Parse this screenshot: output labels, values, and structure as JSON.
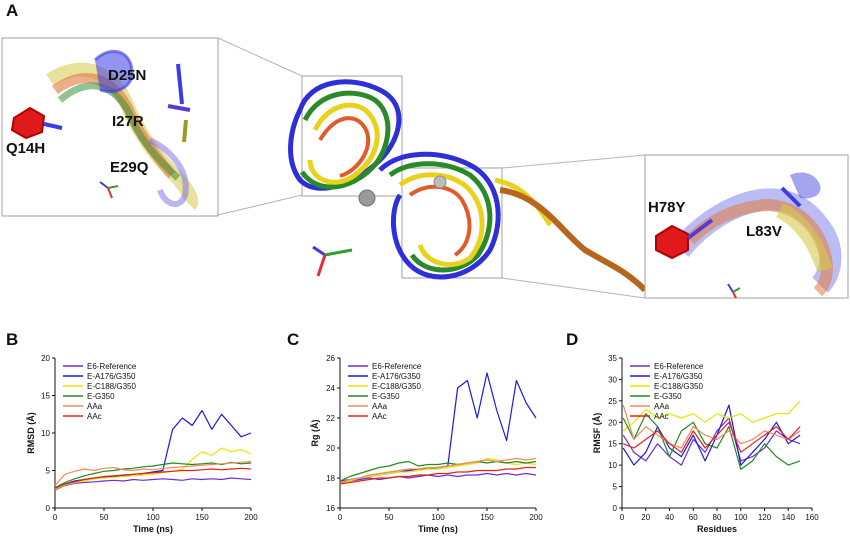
{
  "panel_a": {
    "letter": "A",
    "mutation_labels": [
      "D25N",
      "I27R",
      "Q14H",
      "E29Q",
      "H78Y",
      "L83V"
    ]
  },
  "chart_data": [
    {
      "panel": "B",
      "type": "line",
      "title": "",
      "xlabel": "Time (ns)",
      "ylabel": "RMSD (Å)",
      "xlim": [
        0,
        200
      ],
      "ylim": [
        0,
        20
      ],
      "xticks": [
        "0",
        "50",
        "100",
        "150",
        "200"
      ],
      "yticks": [
        "0",
        "5",
        "10",
        "15",
        "20"
      ],
      "legend_position": "top-left",
      "x": [
        0,
        10,
        20,
        30,
        40,
        50,
        60,
        70,
        80,
        90,
        100,
        110,
        120,
        130,
        140,
        150,
        160,
        170,
        180,
        190,
        200
      ],
      "series": [
        {
          "name": "E6-Reference",
          "color": "#6b2fd6",
          "values": [
            2.4,
            3.0,
            3.3,
            3.4,
            3.5,
            3.6,
            3.7,
            3.6,
            3.8,
            3.7,
            3.8,
            3.9,
            3.8,
            3.7,
            3.9,
            3.8,
            3.9,
            3.8,
            4.0,
            3.9,
            3.8
          ]
        },
        {
          "name": "E-A176/G350",
          "color": "#1a1ae6",
          "values": [
            2.6,
            3.2,
            3.6,
            3.8,
            4.0,
            4.1,
            4.2,
            4.3,
            4.5,
            4.6,
            4.8,
            5.0,
            10.5,
            12.0,
            11.0,
            13.0,
            10.5,
            12.5,
            11.0,
            9.5,
            10.0
          ]
        },
        {
          "name": "E-C188/G350",
          "color": "#e6e600",
          "values": [
            2.5,
            3.1,
            3.4,
            3.6,
            3.9,
            4.0,
            4.1,
            4.2,
            4.3,
            4.4,
            4.5,
            4.7,
            4.9,
            5.2,
            6.5,
            7.5,
            7.0,
            8.0,
            7.5,
            7.8,
            7.2
          ]
        },
        {
          "name": "E-G350",
          "color": "#1e8c1e",
          "values": [
            2.7,
            3.4,
            3.9,
            4.3,
            4.6,
            4.9,
            5.0,
            5.2,
            5.3,
            5.5,
            5.6,
            5.8,
            6.0,
            5.9,
            5.8,
            5.9,
            6.0,
            5.8,
            6.1,
            5.9,
            6.0
          ]
        },
        {
          "name": "AAa",
          "color": "#f08a5a",
          "values": [
            3.0,
            4.5,
            4.9,
            5.2,
            5.0,
            5.3,
            5.4,
            5.1,
            5.0,
            5.2,
            5.1,
            5.3,
            5.4,
            5.5,
            5.6,
            5.7,
            5.8,
            5.9,
            6.0,
            6.1,
            6.2
          ]
        },
        {
          "name": "AAc",
          "color": "#e61e1e",
          "values": [
            2.6,
            3.2,
            3.5,
            3.8,
            4.0,
            4.2,
            4.3,
            4.4,
            4.5,
            4.6,
            4.7,
            4.8,
            4.9,
            5.0,
            5.0,
            5.1,
            5.2,
            5.1,
            5.2,
            5.3,
            5.2
          ]
        }
      ]
    },
    {
      "panel": "C",
      "type": "line",
      "title": "",
      "xlabel": "Time (ns)",
      "ylabel": "Rg (Å)",
      "xlim": [
        0,
        200
      ],
      "ylim": [
        16,
        26
      ],
      "xticks": [
        "0",
        "50",
        "100",
        "150",
        "200"
      ],
      "yticks": [
        "16",
        "18",
        "20",
        "22",
        "24",
        "26"
      ],
      "legend_position": "top-left",
      "x": [
        0,
        10,
        20,
        30,
        40,
        50,
        60,
        70,
        80,
        90,
        100,
        110,
        120,
        130,
        140,
        150,
        160,
        170,
        180,
        190,
        200
      ],
      "series": [
        {
          "name": "E6-Reference",
          "color": "#6b2fd6",
          "values": [
            17.7,
            17.8,
            17.9,
            18.0,
            17.9,
            18.0,
            18.1,
            18.0,
            18.1,
            18.2,
            18.1,
            18.2,
            18.1,
            18.2,
            18.2,
            18.3,
            18.2,
            18.3,
            18.2,
            18.3,
            18.2
          ]
        },
        {
          "name": "E-A176/G350",
          "color": "#1a1ae6",
          "values": [
            17.8,
            17.9,
            18.0,
            18.1,
            18.2,
            18.3,
            18.4,
            18.5,
            18.6,
            18.6,
            18.7,
            18.8,
            24.0,
            24.5,
            22.0,
            25.0,
            22.5,
            20.5,
            24.5,
            23.0,
            22.0
          ]
        },
        {
          "name": "E-C188/G350",
          "color": "#e6e600",
          "values": [
            17.6,
            17.8,
            18.0,
            18.1,
            18.2,
            18.3,
            18.4,
            18.4,
            18.5,
            18.6,
            18.6,
            18.7,
            18.8,
            18.9,
            19.0,
            19.3,
            19.2,
            19.0,
            18.9,
            19.0,
            18.9
          ]
        },
        {
          "name": "E-G350",
          "color": "#1e8c1e",
          "values": [
            17.8,
            18.1,
            18.3,
            18.5,
            18.7,
            18.8,
            19.0,
            19.1,
            18.8,
            18.9,
            18.9,
            19.0,
            18.9,
            19.0,
            19.1,
            19.0,
            19.1,
            19.0,
            19.1,
            19.0,
            19.1
          ]
        },
        {
          "name": "AAa",
          "color": "#f08a5a",
          "values": [
            17.7,
            17.9,
            18.0,
            18.2,
            18.3,
            18.4,
            18.5,
            18.6,
            18.6,
            18.7,
            18.7,
            18.8,
            18.9,
            19.0,
            19.1,
            19.2,
            19.1,
            19.2,
            19.3,
            19.2,
            19.3
          ]
        },
        {
          "name": "AAc",
          "color": "#e61e1e",
          "values": [
            17.6,
            17.7,
            17.8,
            17.9,
            18.0,
            18.0,
            18.1,
            18.1,
            18.2,
            18.2,
            18.3,
            18.3,
            18.4,
            18.4,
            18.5,
            18.5,
            18.5,
            18.6,
            18.6,
            18.7,
            18.7
          ]
        }
      ]
    },
    {
      "panel": "D",
      "type": "line",
      "title": "",
      "xlabel": "Residues",
      "ylabel": "RMSF (Å)",
      "xlim": [
        0,
        160
      ],
      "ylim": [
        0,
        35
      ],
      "xticks": [
        "0",
        "20",
        "40",
        "60",
        "80",
        "100",
        "120",
        "140",
        "160"
      ],
      "yticks": [
        "0",
        "5",
        "10",
        "15",
        "20",
        "25",
        "30",
        "35"
      ],
      "legend_position": "top-left",
      "x": [
        1,
        10,
        20,
        30,
        40,
        50,
        60,
        70,
        80,
        90,
        100,
        110,
        120,
        130,
        140,
        150
      ],
      "series": [
        {
          "name": "E6-Reference",
          "color": "#6b2fd6",
          "values": [
            17,
            13,
            11,
            15,
            12,
            10,
            16,
            13,
            18,
            21,
            11,
            12,
            14,
            18,
            16,
            15
          ]
        },
        {
          "name": "E-A176/G350",
          "color": "#1a1ae6",
          "values": [
            14,
            10,
            13,
            19,
            14,
            12,
            17,
            11,
            17,
            24,
            10,
            13,
            16,
            20,
            15,
            17
          ]
        },
        {
          "name": "E-C188/G350",
          "color": "#e6e600",
          "values": [
            18,
            20,
            23,
            21,
            22,
            21,
            22,
            20,
            22,
            21,
            22,
            20,
            21,
            22,
            22,
            25
          ]
        },
        {
          "name": "E-G350",
          "color": "#1e8c1e",
          "values": [
            21,
            16,
            22,
            19,
            12,
            18,
            20,
            15,
            14,
            19,
            9,
            11,
            15,
            12,
            10,
            11
          ]
        },
        {
          "name": "AAa",
          "color": "#f08a5a",
          "values": [
            24,
            16,
            19,
            17,
            15,
            14,
            19,
            17,
            16,
            18,
            15,
            16,
            18,
            17,
            16,
            18
          ]
        },
        {
          "name": "AAc",
          "color": "#e61e1e",
          "values": [
            15,
            14,
            16,
            18,
            15,
            13,
            18,
            14,
            17,
            20,
            13,
            15,
            17,
            19,
            16,
            19
          ]
        }
      ]
    }
  ]
}
